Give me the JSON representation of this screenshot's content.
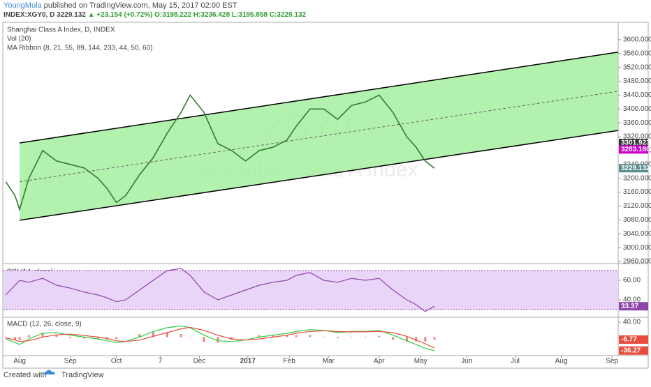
{
  "header": {
    "author": "YoungMula",
    "published": "published on TradingView.com, May 15, 2017 02:00 EST",
    "symbol": "INDEX:XGY0, D",
    "price": "3229.132",
    "change": "▲ +23.154 (+0.72%)",
    "open": "O:3198.222",
    "high": "H:3236.428",
    "low": "L:3195.858",
    "close": "C:3229.132"
  },
  "footer": {
    "created": "Created with",
    "brand": "TradingView"
  },
  "chart_data": [
    {
      "type": "line",
      "name": "Shanghai Class A Index, D, INDEX",
      "legend": [
        "Vol (20)",
        "MA Ribbon (8, 21, 55, 89, 144, 233, 44, 50, 60)"
      ],
      "watermark": [
        "XGY0",
        "Shanghai Class A Index"
      ],
      "xlim": [
        -7,
        259.7
      ],
      "xticks": [
        {
          "value": 0,
          "label": "Aug"
        },
        {
          "value": 22,
          "label": "Sep"
        },
        {
          "value": 42,
          "label": "Oct"
        },
        {
          "value": 61,
          "label": "7"
        },
        {
          "value": 78,
          "label": "Dec"
        },
        {
          "value": 99,
          "label": "2017"
        },
        {
          "value": 117,
          "label": "Feb"
        },
        {
          "value": 134,
          "label": "Mar"
        },
        {
          "value": 156,
          "label": "Apr"
        },
        {
          "value": 174,
          "label": "May"
        },
        {
          "value": 194,
          "label": "Jun"
        },
        {
          "value": 215,
          "label": "Jul"
        },
        {
          "value": 235,
          "label": "Aug"
        },
        {
          "value": 257,
          "label": "Sep"
        }
      ],
      "ylim": [
        2954,
        3648
      ],
      "yticks": [
        {
          "value": 2960,
          "label": "2960.000"
        },
        {
          "value": 3000,
          "label": "3000.000"
        },
        {
          "value": 3040,
          "label": "3040.000"
        },
        {
          "value": 3080,
          "label": "3080.000"
        },
        {
          "value": 3120,
          "label": "3120.000"
        },
        {
          "value": 3160,
          "label": "3160.000"
        },
        {
          "value": 3200,
          "label": "3200.000"
        },
        {
          "value": 3240,
          "label": "3240.000"
        },
        {
          "value": 3280,
          "label": "3280.000"
        },
        {
          "value": 3320,
          "label": "3320.000"
        },
        {
          "value": 3360,
          "label": "3360.000"
        },
        {
          "value": 3400,
          "label": "3400.000"
        },
        {
          "value": 3440,
          "label": "3440.000"
        },
        {
          "value": 3480,
          "label": "3480.000"
        },
        {
          "value": 3520,
          "label": "3520.000"
        },
        {
          "value": 3560,
          "label": "3560.000"
        },
        {
          "value": 3600,
          "label": "3600.000"
        }
      ],
      "x": [
        -6,
        -2,
        0,
        4,
        10,
        16,
        22,
        28,
        34,
        38,
        42,
        46,
        52,
        58,
        64,
        70,
        74,
        80,
        86,
        92,
        98,
        104,
        110,
        116,
        120,
        126,
        132,
        138,
        144,
        150,
        156,
        162,
        168,
        172,
        176,
        180
      ],
      "series": [
        {
          "name": "Close",
          "color": "#2e7d32",
          "values": [
            3190,
            3150,
            3110,
            3200,
            3280,
            3250,
            3240,
            3230,
            3200,
            3170,
            3130,
            3150,
            3210,
            3260,
            3330,
            3390,
            3440,
            3390,
            3300,
            3280,
            3250,
            3280,
            3290,
            3310,
            3350,
            3400,
            3400,
            3370,
            3410,
            3420,
            3440,
            3390,
            3320,
            3290,
            3250,
            3229.132
          ]
        }
      ],
      "channel": {
        "x": [
          0,
          259.7
        ],
        "upper": [
          3302,
          3564
        ],
        "middle": [
          3190,
          3451
        ],
        "lower": [
          3079,
          3338
        ],
        "fill": "#a6f0a0"
      },
      "price_labels": [
        {
          "value": 3301.923,
          "color": "#333333"
        },
        {
          "value": 3283.18,
          "label": "3283.180",
          "color": "#cc00cc"
        },
        {
          "value": 3229.132,
          "color": "#5a8f8f"
        }
      ]
    },
    {
      "type": "line",
      "name": "RSI (14, close)",
      "ylim": [
        22.1,
        75.7
      ],
      "yticks": [
        {
          "value": 40,
          "label": "40.00"
        },
        {
          "value": 60,
          "label": "60.00"
        }
      ],
      "bands": [
        30,
        70
      ],
      "x": [
        -6,
        -2,
        0,
        4,
        10,
        16,
        22,
        28,
        34,
        38,
        42,
        46,
        52,
        58,
        64,
        70,
        74,
        80,
        86,
        92,
        98,
        104,
        110,
        116,
        120,
        126,
        132,
        138,
        144,
        150,
        156,
        162,
        168,
        172,
        176,
        180
      ],
      "series": [
        {
          "name": "RSI",
          "color": "#8e44ad",
          "values": [
            45,
            55,
            60,
            58,
            62,
            55,
            52,
            48,
            45,
            42,
            38,
            40,
            50,
            60,
            70,
            72,
            65,
            48,
            40,
            45,
            50,
            55,
            58,
            60,
            65,
            68,
            60,
            58,
            62,
            60,
            62,
            50,
            40,
            35,
            28,
            33.37
          ]
        }
      ],
      "last_label": {
        "value": 33.37,
        "color": "#8e44ad"
      }
    },
    {
      "type": "macd",
      "name": "MACD (12, 26, close, 9)",
      "ylim": [
        -49.8,
        53.1
      ],
      "yticks": [
        {
          "value": 40,
          "label": "40.00"
        }
      ],
      "x": [
        -6,
        -2,
        0,
        4,
        10,
        16,
        22,
        28,
        34,
        38,
        42,
        46,
        52,
        58,
        64,
        70,
        74,
        80,
        86,
        92,
        98,
        104,
        110,
        116,
        120,
        126,
        132,
        138,
        144,
        150,
        156,
        162,
        168,
        172,
        176,
        180
      ],
      "series": [
        {
          "name": "MACD",
          "color": "#2ecc40",
          "values": [
            -5,
            -15,
            -20,
            -5,
            10,
            12,
            5,
            0,
            -5,
            -10,
            -15,
            -12,
            0,
            15,
            25,
            30,
            25,
            5,
            -10,
            -12,
            -8,
            0,
            5,
            10,
            15,
            20,
            18,
            12,
            15,
            15,
            18,
            5,
            -10,
            -20,
            -30,
            -36.27
          ]
        },
        {
          "name": "Signal",
          "color": "#e74c3c",
          "values": [
            -2,
            -8,
            -12,
            -10,
            0,
            6,
            8,
            4,
            0,
            -4,
            -10,
            -12,
            -8,
            2,
            12,
            22,
            26,
            18,
            5,
            -5,
            -8,
            -5,
            0,
            5,
            10,
            15,
            17,
            15,
            14,
            14,
            15,
            12,
            2,
            -8,
            -18,
            -29.5
          ]
        }
      ],
      "histogram": {
        "color": "#e74c3c",
        "values": [
          -3,
          -7,
          -8,
          5,
          10,
          6,
          -3,
          -4,
          -5,
          -6,
          -5,
          0,
          8,
          13,
          13,
          8,
          -1,
          -13,
          -15,
          -7,
          0,
          5,
          5,
          5,
          5,
          5,
          1,
          -3,
          1,
          1,
          3,
          -7,
          -12,
          -12,
          -12,
          -6.77
        ]
      },
      "last_labels": [
        {
          "value": -6.77,
          "color": "#e74c3c"
        },
        {
          "value": -36.27,
          "color": "#e74c3c"
        }
      ]
    }
  ]
}
